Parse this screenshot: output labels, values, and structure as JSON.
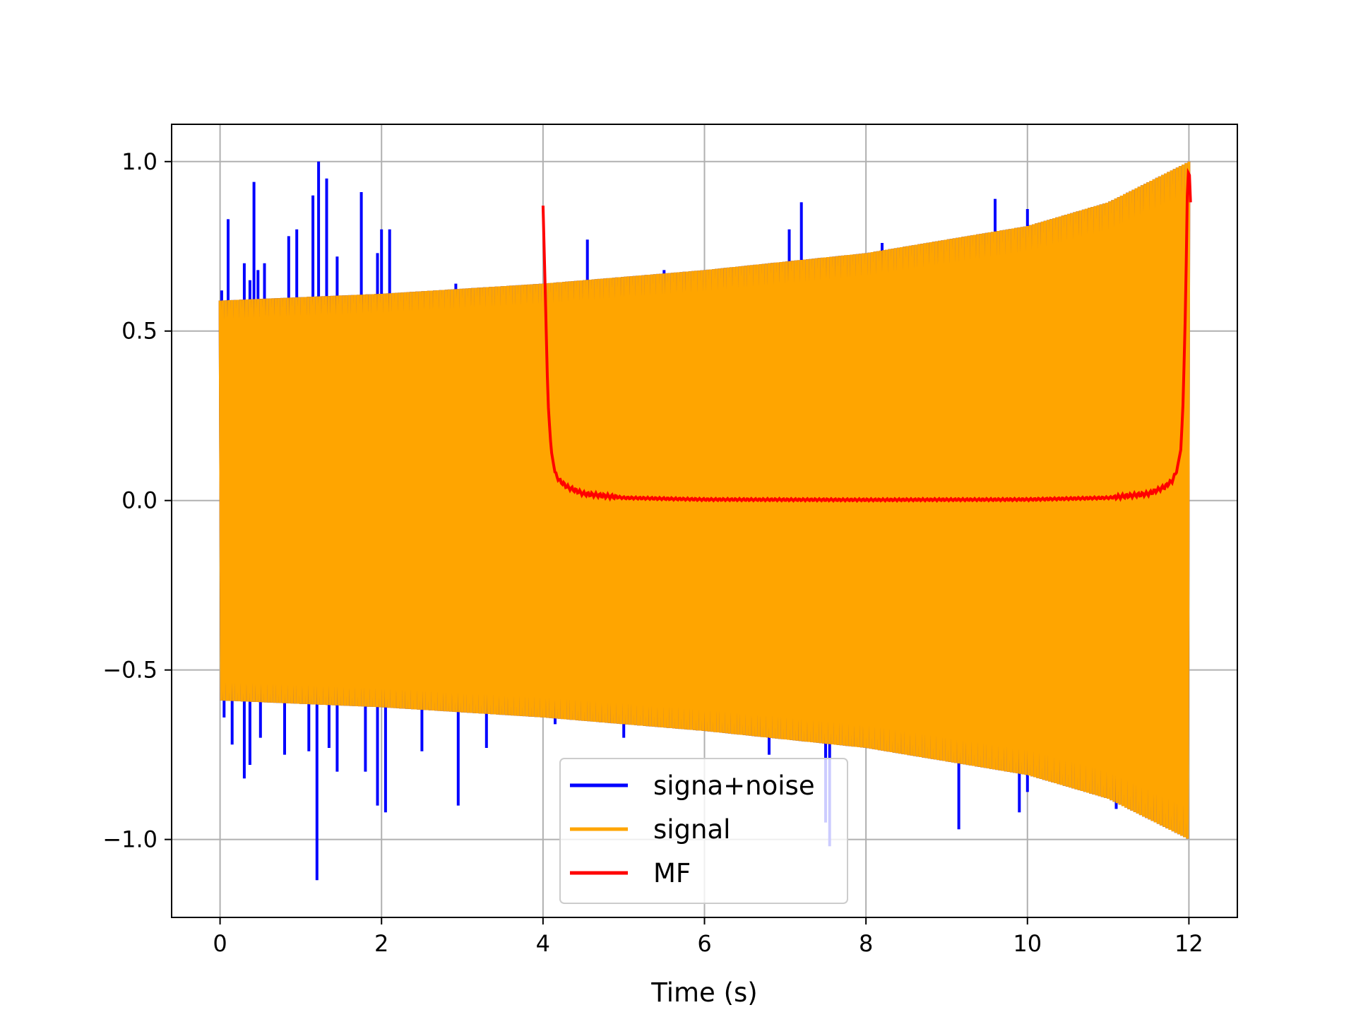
{
  "chart_data": {
    "type": "line",
    "title": "",
    "xlabel": "Time (s)",
    "ylabel": "",
    "xlim": [
      -0.6,
      12.6
    ],
    "ylim": [
      -1.23,
      1.11
    ],
    "xticks": [
      0,
      2,
      4,
      6,
      8,
      10,
      12
    ],
    "xtick_labels": [
      "0",
      "2",
      "4",
      "6",
      "8",
      "10",
      "12"
    ],
    "yticks": [
      -1.0,
      -0.5,
      0.0,
      0.5,
      1.0
    ],
    "ytick_labels": [
      "−1.0",
      "−0.5",
      "0.0",
      "0.5",
      "1.0"
    ],
    "grid": true,
    "legend_position": "lower-center",
    "series": [
      {
        "name": "signa+noise",
        "color": "#0000ff",
        "x_range": [
          0,
          12
        ],
        "noise_spikes_high": [
          [
            0.02,
            0.62
          ],
          [
            0.1,
            0.83
          ],
          [
            0.3,
            0.7
          ],
          [
            0.37,
            0.65
          ],
          [
            0.42,
            0.94
          ],
          [
            0.47,
            0.68
          ],
          [
            0.55,
            0.7
          ],
          [
            0.85,
            0.78
          ],
          [
            0.95,
            0.8
          ],
          [
            1.15,
            0.9
          ],
          [
            1.22,
            1.0
          ],
          [
            1.32,
            0.95
          ],
          [
            1.45,
            0.72
          ],
          [
            1.75,
            0.91
          ],
          [
            1.95,
            0.73
          ],
          [
            2.0,
            0.8
          ],
          [
            2.1,
            0.8
          ],
          [
            2.92,
            0.64
          ],
          [
            4.55,
            0.77
          ],
          [
            5.5,
            0.68
          ],
          [
            7.05,
            0.8
          ],
          [
            7.2,
            0.88
          ],
          [
            8.2,
            0.76
          ],
          [
            9.6,
            0.89
          ],
          [
            10.0,
            0.86
          ],
          [
            11.9,
            0.75
          ]
        ],
        "noise_spikes_low": [
          [
            0.05,
            -0.64
          ],
          [
            0.15,
            -0.72
          ],
          [
            0.3,
            -0.82
          ],
          [
            0.37,
            -0.78
          ],
          [
            0.5,
            -0.7
          ],
          [
            0.8,
            -0.75
          ],
          [
            1.1,
            -0.74
          ],
          [
            1.2,
            -1.12
          ],
          [
            1.35,
            -0.73
          ],
          [
            1.45,
            -0.8
          ],
          [
            1.8,
            -0.8
          ],
          [
            1.95,
            -0.9
          ],
          [
            2.05,
            -0.92
          ],
          [
            2.5,
            -0.74
          ],
          [
            2.95,
            -0.9
          ],
          [
            3.3,
            -0.73
          ],
          [
            4.15,
            -0.66
          ],
          [
            5.0,
            -0.7
          ],
          [
            6.8,
            -0.75
          ],
          [
            7.5,
            -0.95
          ],
          [
            7.55,
            -1.02
          ],
          [
            9.15,
            -0.97
          ],
          [
            9.9,
            -0.92
          ],
          [
            10.0,
            -0.86
          ],
          [
            11.1,
            -0.91
          ]
        ]
      },
      {
        "name": "signal",
        "color": "#ffa500",
        "x_range": [
          0,
          12
        ],
        "envelope": [
          [
            0,
            0.59
          ],
          [
            2,
            0.61
          ],
          [
            4,
            0.64
          ],
          [
            6,
            0.68
          ],
          [
            8,
            0.73
          ],
          [
            10,
            0.81
          ],
          [
            11,
            0.88
          ],
          [
            12,
            1.0
          ]
        ]
      },
      {
        "name": "MF",
        "color": "#ff0000",
        "points": [
          [
            4.0,
            0.87
          ],
          [
            4.03,
            0.6
          ],
          [
            4.06,
            0.3
          ],
          [
            4.1,
            0.15
          ],
          [
            4.15,
            0.08
          ],
          [
            4.2,
            0.06
          ],
          [
            4.3,
            0.04
          ],
          [
            4.5,
            0.02
          ],
          [
            5.0,
            0.008
          ],
          [
            6.0,
            0.003
          ],
          [
            8.0,
            0.002
          ],
          [
            10.0,
            0.003
          ],
          [
            11.0,
            0.008
          ],
          [
            11.5,
            0.02
          ],
          [
            11.7,
            0.04
          ],
          [
            11.8,
            0.06
          ],
          [
            11.85,
            0.09
          ],
          [
            11.9,
            0.15
          ],
          [
            11.93,
            0.3
          ],
          [
            11.96,
            0.6
          ],
          [
            11.98,
            0.9
          ],
          [
            12.0,
            1.0
          ],
          [
            12.02,
            0.88
          ]
        ]
      }
    ]
  }
}
